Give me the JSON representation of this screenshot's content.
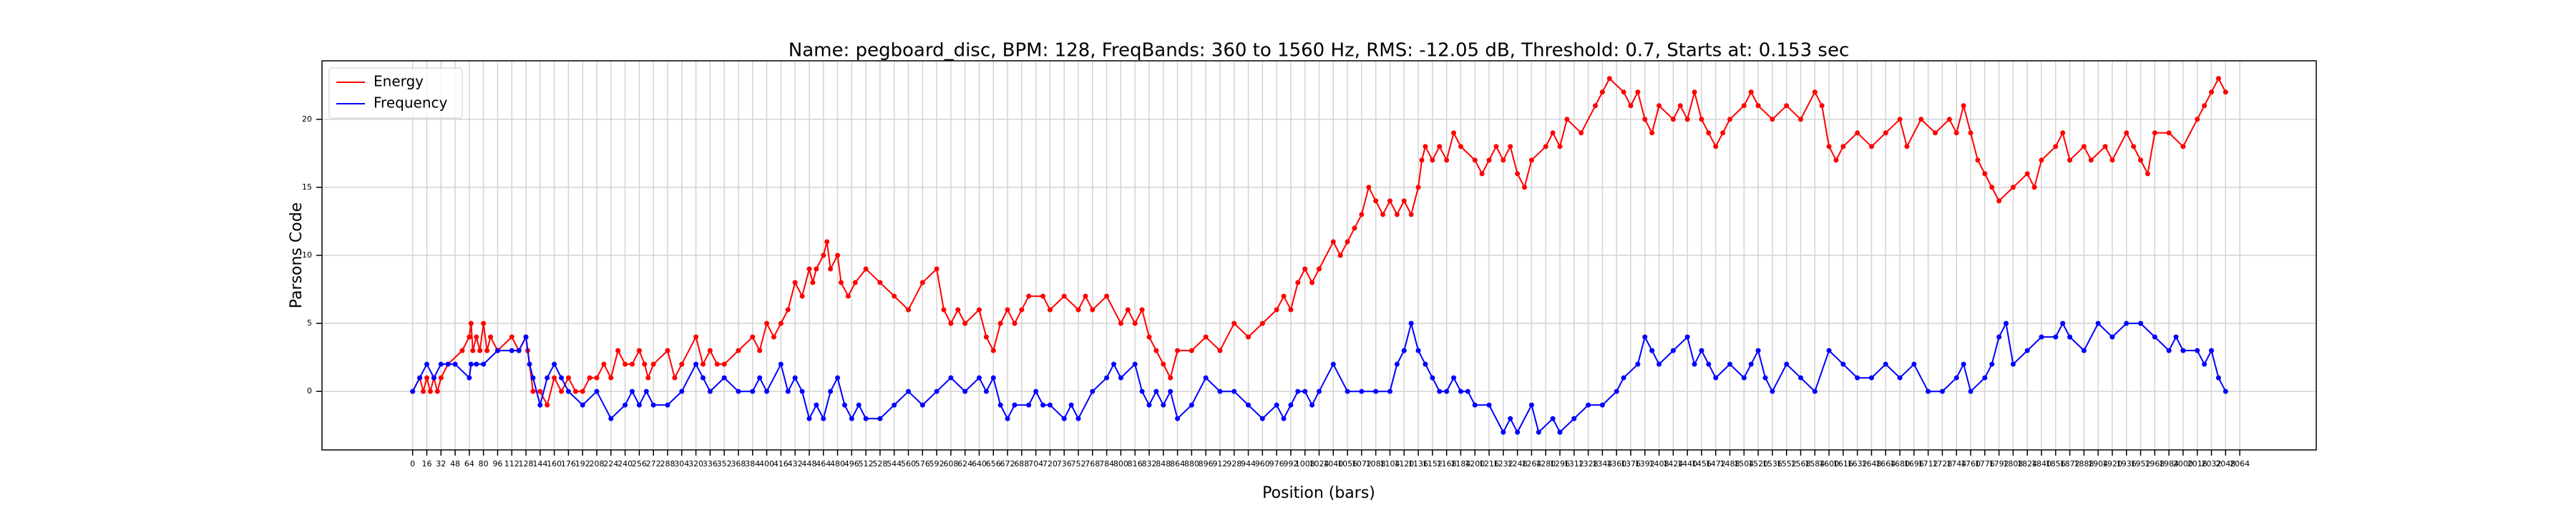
{
  "chart_data": {
    "type": "line",
    "title": "Name: pegboard_disc, BPM: 128, FreqBands: 360 to 1560 Hz, RMS: -12.05 dB, Threshold: 0.7, Starts at: 0.153 sec",
    "x_label": "Position (bars)",
    "y_label": "Parsons Code",
    "xlim": [
      -102.4,
      2150.4
    ],
    "ylim": [
      -4.3,
      24.3
    ],
    "xticks": [
      0,
      16,
      32,
      48,
      64,
      80,
      96,
      112,
      128,
      144,
      160,
      176,
      192,
      208,
      224,
      240,
      256,
      272,
      288,
      304,
      320,
      336,
      352,
      368,
      384,
      400,
      416,
      432,
      448,
      464,
      480,
      496,
      512,
      528,
      544,
      560,
      576,
      592,
      608,
      624,
      640,
      656,
      672,
      688,
      704,
      720,
      736,
      752,
      768,
      784,
      800,
      816,
      832,
      848,
      864,
      880,
      896,
      912,
      928,
      944,
      960,
      976,
      992,
      1008,
      1024,
      1040,
      1056,
      1072,
      1088,
      1104,
      1120,
      1136,
      1152,
      1168,
      1184,
      1200,
      1216,
      1232,
      1248,
      1264,
      1280,
      1296,
      1312,
      1328,
      1344,
      1360,
      1376,
      1392,
      1408,
      1424,
      1440,
      1456,
      1472,
      1488,
      1504,
      1520,
      1536,
      1552,
      1568,
      1584,
      1600,
      1616,
      1632,
      1648,
      1664,
      1680,
      1696,
      1712,
      1728,
      1744,
      1760,
      1776,
      1792,
      1808,
      1824,
      1840,
      1856,
      1872,
      1888,
      1904,
      1920,
      1936,
      1952,
      1968,
      1984,
      2000,
      2016,
      2032,
      2048,
      2064
    ],
    "yticks": [
      0,
      5,
      10,
      15,
      20
    ],
    "grid": true,
    "legend": "upper-left",
    "series": [
      {
        "name": "Energy",
        "color": "#ff0000",
        "x": [
          0,
          8,
          12,
          16,
          20,
          24,
          28,
          32,
          40,
          56,
          64,
          66,
          68,
          72,
          76,
          80,
          84,
          88,
          96,
          112,
          120,
          128,
          130,
          136,
          144,
          152,
          160,
          168,
          176,
          184,
          192,
          200,
          208,
          216,
          224,
          232,
          240,
          248,
          256,
          262,
          266,
          272,
          288,
          296,
          304,
          320,
          328,
          336,
          344,
          352,
          368,
          384,
          392,
          400,
          408,
          416,
          424,
          432,
          440,
          448,
          452,
          456,
          464,
          468,
          472,
          480,
          484,
          492,
          500,
          512,
          528,
          544,
          560,
          576,
          592,
          600,
          608,
          616,
          624,
          640,
          648,
          656,
          664,
          672,
          680,
          688,
          696,
          712,
          720,
          736,
          752,
          760,
          768,
          784,
          800,
          808,
          816,
          824,
          832,
          840,
          848,
          856,
          864,
          880,
          896,
          912,
          928,
          944,
          960,
          976,
          984,
          992,
          1000,
          1008,
          1016,
          1024,
          1040,
          1048,
          1056,
          1064,
          1072,
          1080,
          1088,
          1096,
          1104,
          1112,
          1120,
          1128,
          1136,
          1140,
          1144,
          1152,
          1160,
          1168,
          1176,
          1184,
          1200,
          1208,
          1216,
          1224,
          1232,
          1240,
          1248,
          1256,
          1264,
          1280,
          1288,
          1296,
          1304,
          1320,
          1336,
          1344,
          1352,
          1368,
          1376,
          1384,
          1392,
          1400,
          1408,
          1424,
          1432,
          1440,
          1448,
          1456,
          1464,
          1472,
          1480,
          1488,
          1504,
          1512,
          1520,
          1536,
          1552,
          1568,
          1584,
          1592,
          1600,
          1608,
          1616,
          1632,
          1648,
          1664,
          1680,
          1688,
          1704,
          1720,
          1736,
          1744,
          1752,
          1760,
          1768,
          1776,
          1784,
          1792,
          1808,
          1824,
          1832,
          1840,
          1856,
          1864,
          1872,
          1888,
          1896,
          1912,
          1920,
          1936,
          1944,
          1952,
          1960,
          1968,
          1984,
          2000,
          2016,
          2024,
          2032,
          2040,
          2048
        ],
        "values": [
          0,
          1,
          0,
          1,
          0,
          1,
          0,
          1,
          2,
          3,
          4,
          5,
          3,
          4,
          3,
          5,
          3,
          4,
          3,
          4,
          3,
          4,
          3,
          0,
          0,
          -1,
          1,
          0,
          1,
          0,
          0,
          1,
          1,
          2,
          1,
          3,
          2,
          2,
          3,
          2,
          1,
          2,
          3,
          1,
          2,
          4,
          2,
          3,
          2,
          2,
          3,
          4,
          3,
          5,
          4,
          5,
          6,
          8,
          7,
          9,
          8,
          9,
          10,
          11,
          9,
          10,
          8,
          7,
          8,
          9,
          8,
          7,
          6,
          8,
          9,
          6,
          5,
          6,
          5,
          6,
          4,
          3,
          5,
          6,
          5,
          6,
          7,
          7,
          6,
          7,
          6,
          7,
          6,
          7,
          5,
          6,
          5,
          6,
          4,
          3,
          2,
          1,
          3,
          3,
          4,
          3,
          5,
          4,
          5,
          6,
          7,
          6,
          8,
          9,
          8,
          9,
          11,
          10,
          11,
          12,
          13,
          15,
          14,
          13,
          14,
          13,
          14,
          13,
          15,
          17,
          18,
          17,
          18,
          17,
          19,
          18,
          17,
          16,
          17,
          18,
          17,
          18,
          16,
          15,
          17,
          18,
          19,
          18,
          20,
          19,
          21,
          22,
          23,
          22,
          21,
          22,
          20,
          19,
          21,
          20,
          21,
          20,
          22,
          20,
          19,
          18,
          19,
          20,
          21,
          22,
          21,
          20,
          21,
          20,
          22,
          21,
          18,
          17,
          18,
          19,
          18,
          19,
          20,
          18,
          20,
          19,
          20,
          19,
          21,
          19,
          17,
          16,
          15,
          14,
          15,
          16,
          15,
          17,
          18,
          19,
          17,
          18,
          17,
          18,
          17,
          19,
          18,
          17,
          16,
          19,
          19,
          18,
          20,
          21,
          22,
          23,
          22
        ]
      },
      {
        "name": "Frequency",
        "color": "#0000ff",
        "x": [
          0,
          8,
          16,
          24,
          32,
          40,
          48,
          64,
          66,
          72,
          80,
          96,
          112,
          120,
          128,
          132,
          136,
          144,
          152,
          160,
          168,
          176,
          192,
          208,
          224,
          240,
          248,
          256,
          264,
          272,
          288,
          304,
          320,
          328,
          336,
          352,
          368,
          384,
          392,
          400,
          416,
          424,
          432,
          440,
          448,
          456,
          464,
          472,
          480,
          488,
          496,
          504,
          512,
          528,
          544,
          560,
          576,
          592,
          608,
          624,
          640,
          648,
          656,
          664,
          672,
          680,
          696,
          704,
          712,
          720,
          736,
          744,
          752,
          768,
          784,
          792,
          800,
          816,
          824,
          832,
          840,
          848,
          856,
          864,
          880,
          896,
          912,
          928,
          944,
          960,
          976,
          984,
          992,
          1000,
          1008,
          1016,
          1024,
          1040,
          1056,
          1072,
          1088,
          1104,
          1112,
          1120,
          1128,
          1136,
          1144,
          1152,
          1160,
          1168,
          1176,
          1184,
          1192,
          1200,
          1216,
          1232,
          1240,
          1248,
          1264,
          1272,
          1288,
          1296,
          1312,
          1328,
          1344,
          1360,
          1368,
          1384,
          1392,
          1400,
          1408,
          1424,
          1440,
          1448,
          1456,
          1464,
          1472,
          1488,
          1504,
          1512,
          1520,
          1528,
          1536,
          1552,
          1568,
          1584,
          1600,
          1616,
          1632,
          1648,
          1664,
          1680,
          1696,
          1712,
          1728,
          1744,
          1752,
          1760,
          1776,
          1784,
          1792,
          1800,
          1808,
          1824,
          1840,
          1856,
          1864,
          1872,
          1888,
          1904,
          1920,
          1936,
          1952,
          1968,
          1984,
          1992,
          2000,
          2016,
          2024,
          2032,
          2040,
          2048
        ],
        "values": [
          0,
          1,
          2,
          1,
          2,
          2,
          2,
          1,
          2,
          2,
          2,
          3,
          3,
          3,
          4,
          2,
          1,
          -1,
          1,
          2,
          1,
          0,
          -1,
          0,
          -2,
          -1,
          0,
          -1,
          0,
          -1,
          -1,
          0,
          2,
          1,
          0,
          1,
          0,
          0,
          1,
          0,
          2,
          0,
          1,
          0,
          -2,
          -1,
          -2,
          0,
          1,
          -1,
          -2,
          -1,
          -2,
          -2,
          -1,
          0,
          -1,
          0,
          1,
          0,
          1,
          0,
          1,
          -1,
          -2,
          -1,
          -1,
          0,
          -1,
          -1,
          -2,
          -1,
          -2,
          0,
          1,
          2,
          1,
          2,
          0,
          -1,
          0,
          -1,
          0,
          -2,
          -1,
          1,
          0,
          0,
          -1,
          -2,
          -1,
          -2,
          -1,
          0,
          0,
          -1,
          0,
          2,
          0,
          0,
          0,
          0,
          2,
          3,
          5,
          3,
          2,
          1,
          0,
          0,
          1,
          0,
          0,
          -1,
          -1,
          -3,
          -2,
          -3,
          -1,
          -3,
          -2,
          -3,
          -2,
          -1,
          -1,
          0,
          1,
          2,
          4,
          3,
          2,
          3,
          4,
          2,
          3,
          2,
          1,
          2,
          1,
          2,
          3,
          1,
          0,
          2,
          1,
          0,
          3,
          2,
          1,
          1,
          2,
          1,
          2,
          0,
          0,
          1,
          2,
          0,
          1,
          2,
          4,
          5,
          2,
          3,
          4,
          4,
          5,
          4,
          3,
          5,
          4,
          5,
          5,
          4,
          3,
          4,
          3,
          3,
          2,
          3,
          1,
          0
        ]
      }
    ]
  }
}
